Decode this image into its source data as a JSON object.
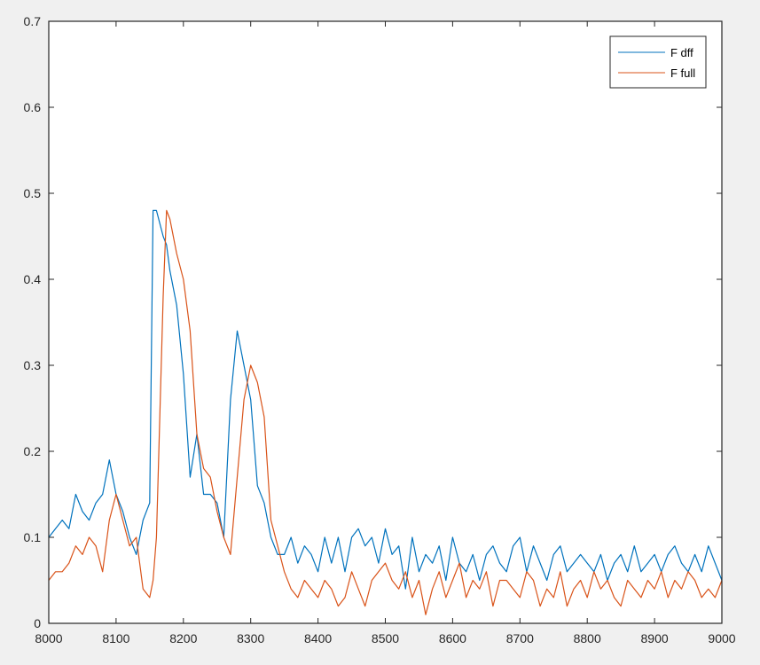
{
  "chart_data": {
    "type": "line",
    "title": "",
    "xlabel": "",
    "ylabel": "",
    "xlim": [
      8000,
      9000
    ],
    "ylim": [
      0,
      0.7
    ],
    "grid": false,
    "legend_position": "northeast",
    "xticks": [
      8000,
      8100,
      8200,
      8300,
      8400,
      8500,
      8600,
      8700,
      8800,
      8900,
      9000
    ],
    "xtick_labels": [
      "8000",
      "8100",
      "8200",
      "8300",
      "8400",
      "8500",
      "8600",
      "8700",
      "8800",
      "8900",
      "9000"
    ],
    "yticks": [
      0,
      0.1,
      0.2,
      0.3,
      0.4,
      0.5,
      0.6,
      0.7
    ],
    "ytick_labels": [
      "0",
      "0.1",
      "0.2",
      "0.3",
      "0.4",
      "0.5",
      "0.6",
      "0.7"
    ],
    "x": [
      8000,
      8010,
      8020,
      8030,
      8040,
      8050,
      8060,
      8070,
      8080,
      8090,
      8100,
      8110,
      8120,
      8130,
      8140,
      8150,
      8155,
      8160,
      8170,
      8175,
      8180,
      8190,
      8200,
      8210,
      8220,
      8230,
      8240,
      8250,
      8260,
      8270,
      8280,
      8290,
      8300,
      8310,
      8320,
      8330,
      8340,
      8350,
      8360,
      8370,
      8380,
      8390,
      8400,
      8410,
      8420,
      8430,
      8440,
      8450,
      8460,
      8470,
      8480,
      8490,
      8500,
      8510,
      8520,
      8530,
      8540,
      8550,
      8560,
      8570,
      8580,
      8590,
      8600,
      8610,
      8620,
      8630,
      8640,
      8650,
      8660,
      8670,
      8680,
      8690,
      8700,
      8710,
      8720,
      8730,
      8740,
      8750,
      8760,
      8770,
      8780,
      8790,
      8800,
      8810,
      8820,
      8830,
      8840,
      8850,
      8860,
      8870,
      8880,
      8890,
      8900,
      8910,
      8920,
      8930,
      8940,
      8950,
      8960,
      8970,
      8980,
      8990,
      9000
    ],
    "series": [
      {
        "name": "F dff",
        "color": "#0072bd",
        "values": [
          0.1,
          0.11,
          0.12,
          0.11,
          0.15,
          0.13,
          0.12,
          0.14,
          0.15,
          0.19,
          0.15,
          0.13,
          0.1,
          0.08,
          0.12,
          0.14,
          0.48,
          0.48,
          0.45,
          0.44,
          0.41,
          0.37,
          0.29,
          0.17,
          0.22,
          0.15,
          0.15,
          0.14,
          0.1,
          0.26,
          0.34,
          0.3,
          0.26,
          0.16,
          0.14,
          0.1,
          0.08,
          0.08,
          0.1,
          0.07,
          0.09,
          0.08,
          0.06,
          0.1,
          0.07,
          0.1,
          0.06,
          0.1,
          0.11,
          0.09,
          0.1,
          0.07,
          0.11,
          0.08,
          0.09,
          0.04,
          0.1,
          0.06,
          0.08,
          0.07,
          0.09,
          0.05,
          0.1,
          0.07,
          0.06,
          0.08,
          0.05,
          0.08,
          0.09,
          0.07,
          0.06,
          0.09,
          0.1,
          0.06,
          0.09,
          0.07,
          0.05,
          0.08,
          0.09,
          0.06,
          0.07,
          0.08,
          0.07,
          0.06,
          0.08,
          0.05,
          0.07,
          0.08,
          0.06,
          0.09,
          0.06,
          0.07,
          0.08,
          0.06,
          0.08,
          0.09,
          0.07,
          0.06,
          0.08,
          0.06,
          0.09,
          0.07,
          0.05
        ]
      },
      {
        "name": "F full",
        "color": "#d95319",
        "values": [
          0.05,
          0.06,
          0.06,
          0.07,
          0.09,
          0.08,
          0.1,
          0.09,
          0.06,
          0.12,
          0.15,
          0.12,
          0.09,
          0.1,
          0.04,
          0.03,
          0.05,
          0.1,
          0.38,
          0.48,
          0.47,
          0.43,
          0.4,
          0.34,
          0.22,
          0.18,
          0.17,
          0.13,
          0.1,
          0.08,
          0.17,
          0.26,
          0.3,
          0.28,
          0.24,
          0.12,
          0.09,
          0.06,
          0.04,
          0.03,
          0.05,
          0.04,
          0.03,
          0.05,
          0.04,
          0.02,
          0.03,
          0.06,
          0.04,
          0.02,
          0.05,
          0.06,
          0.07,
          0.05,
          0.04,
          0.06,
          0.03,
          0.05,
          0.01,
          0.04,
          0.06,
          0.03,
          0.05,
          0.07,
          0.03,
          0.05,
          0.04,
          0.06,
          0.02,
          0.05,
          0.05,
          0.04,
          0.03,
          0.06,
          0.05,
          0.02,
          0.04,
          0.03,
          0.06,
          0.02,
          0.04,
          0.05,
          0.03,
          0.06,
          0.04,
          0.05,
          0.03,
          0.02,
          0.05,
          0.04,
          0.03,
          0.05,
          0.04,
          0.06,
          0.03,
          0.05,
          0.04,
          0.06,
          0.05,
          0.03,
          0.04,
          0.03,
          0.05
        ]
      }
    ]
  },
  "legend": {
    "items": [
      {
        "label": "F dff",
        "color": "#0072bd"
      },
      {
        "label": "F full",
        "color": "#d95319"
      }
    ]
  }
}
